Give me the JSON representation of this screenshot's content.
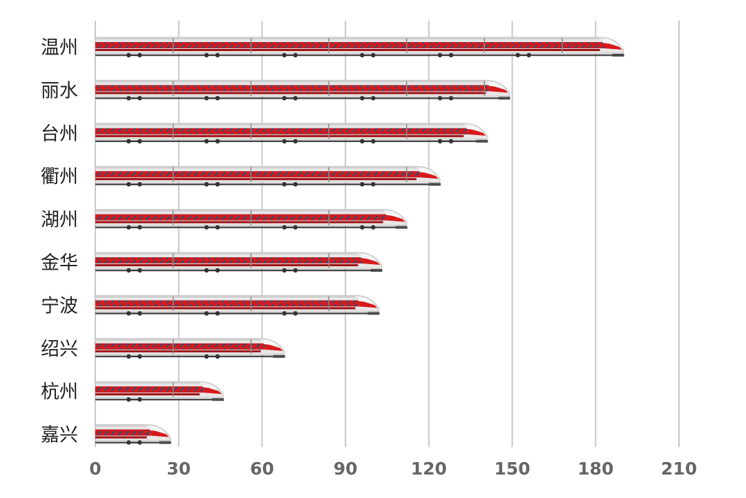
{
  "chart_data": {
    "type": "bar",
    "orientation": "horizontal",
    "title": "",
    "xlabel": "",
    "ylabel": "",
    "categories": [
      "温州",
      "丽水",
      "台州",
      "衢州",
      "湖州",
      "金华",
      "宁波",
      "绍兴",
      "杭州",
      "嘉兴"
    ],
    "values": [
      190,
      149,
      141,
      124,
      112,
      103,
      102,
      68,
      46,
      27
    ],
    "xlim": [
      0,
      210
    ],
    "xticks": [
      "0",
      "30",
      "60",
      "90",
      "120",
      "150",
      "180",
      "210"
    ],
    "grid": "vertical",
    "legend": "none",
    "bar_style": "high-speed-train",
    "colors": {
      "train_red": "#d7191c",
      "train_dark": "#9e0f12",
      "train_body": "#e9e6e6",
      "train_roof": "#cfcfcf",
      "grid": "#c8c8c8",
      "rail": "#4a4a4a",
      "window": "#3a4a6b"
    }
  }
}
